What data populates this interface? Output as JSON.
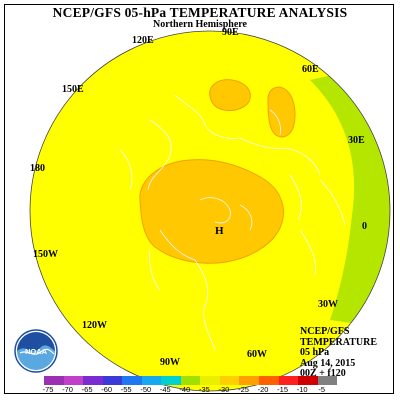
{
  "header": {
    "title": "NCEP/GFS 05-hPa TEMPERATURE ANALYSIS",
    "subtitle": "Northern Hemisphere"
  },
  "map": {
    "longitude_labels": {
      "lon_90e": "90E",
      "lon_120e": "120E",
      "lon_60e": "60E",
      "lon_150e": "150E",
      "lon_30e": "30E",
      "lon_180": "180",
      "lon_0": "0",
      "lon_150w": "150W",
      "lon_30w": "30W",
      "lon_120w": "120W",
      "lon_60w": "60W",
      "lon_90w": "90W"
    },
    "high_marker": "H",
    "colors": {
      "ocean_bg": "#ffff00",
      "warm_region": "#ffc800",
      "dark_region": "#f2a000",
      "cool_edge": "#b4e600",
      "coastline": "#f5f5ff"
    }
  },
  "logo": {
    "text": "NOAA"
  },
  "info": {
    "line1": "NCEP/GFS",
    "line2": "TEMPERATURE",
    "line3": "05 hPa",
    "line4": "Aug 14, 2015",
    "line5": "00Z + f120"
  },
  "colorbar": {
    "labels": [
      "-75",
      "-70",
      "-65",
      "-60",
      "-55",
      "-50",
      "-45",
      "-40",
      "-35",
      "-30",
      "-25",
      "-20",
      "-15",
      "-10",
      "-5"
    ],
    "colors": [
      "#9b30b0",
      "#c040c8",
      "#7a2cd0",
      "#3a3ad8",
      "#1e78f0",
      "#18a8f0",
      "#00d0d0",
      "#a0e000",
      "#e8f000",
      "#ffd000",
      "#ffa000",
      "#ff6000",
      "#ff2020",
      "#d00000",
      "#808080"
    ]
  }
}
